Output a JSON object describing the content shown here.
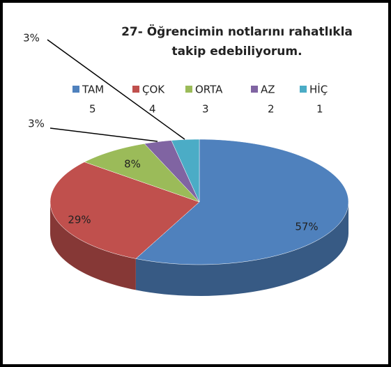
{
  "chart_data": {
    "type": "pie3d",
    "title": [
      "27- Öğrencimin notlarını rahatlıkla",
      "takip edebiliyorum."
    ],
    "categories": [
      "TAM",
      "ÇOK",
      "ORTA",
      "AZ",
      "HİÇ"
    ],
    "legend_codes": [
      "5",
      "4",
      "3",
      "2",
      "1"
    ],
    "values": [
      57,
      29,
      8,
      3,
      3
    ],
    "value_labels": [
      "57%",
      "29%",
      "8%",
      "3%",
      "3%"
    ],
    "colors": [
      "#4f81bd",
      "#c0504d",
      "#9bbb59",
      "#8064a2",
      "#4bacc6"
    ]
  }
}
